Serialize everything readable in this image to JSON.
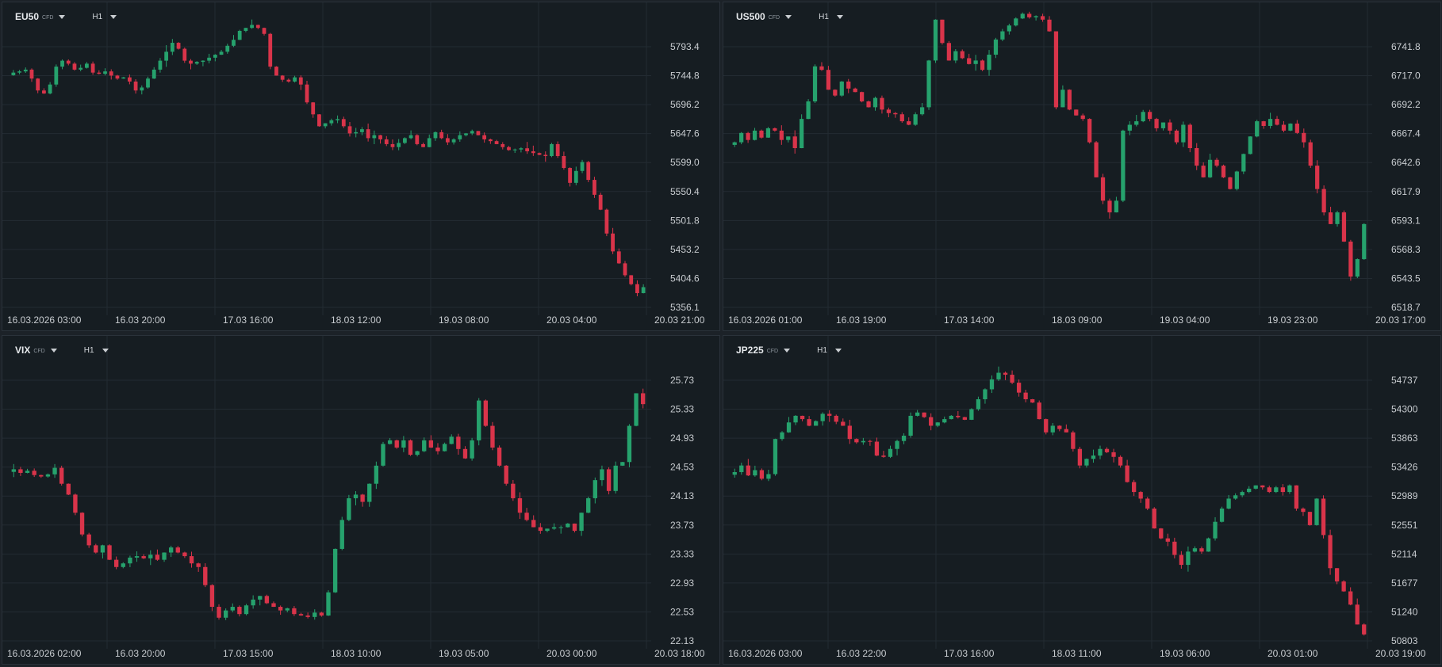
{
  "colors": {
    "up": "#26a26d",
    "down": "#d9344a",
    "grid": "#232b32",
    "background": "#161d22"
  },
  "panels": [
    {
      "symbol": "EU50",
      "type": "CFD",
      "timeframe": "H1",
      "price_ticks": [
        "5793.4",
        "5744.8",
        "5696.2",
        "5647.6",
        "5599.0",
        "5550.4",
        "5501.8",
        "5453.2",
        "5404.6",
        "5356.1"
      ],
      "time_labels": [
        "16.03.2026   03:00",
        "16.03  20:00",
        "17.03  16:00",
        "18.03  12:00",
        "19.03  08:00",
        "20.03  04:00",
        "20.03  21:00"
      ]
    },
    {
      "symbol": "US500",
      "type": "CFD",
      "timeframe": "H1",
      "price_ticks": [
        "6741.8",
        "6717.0",
        "6692.2",
        "6667.4",
        "6642.6",
        "6617.9",
        "6593.1",
        "6568.3",
        "6543.5",
        "6518.7"
      ],
      "time_labels": [
        "16.03.2026   01:00",
        "16.03  19:00",
        "17.03  14:00",
        "18.03  09:00",
        "19.03  04:00",
        "19.03  23:00",
        "20.03  17:00"
      ]
    },
    {
      "symbol": "VIX",
      "type": "CFD",
      "timeframe": "H1",
      "price_ticks": [
        "25.73",
        "25.33",
        "24.93",
        "24.53",
        "24.13",
        "23.73",
        "23.33",
        "22.93",
        "22.53",
        "22.13"
      ],
      "time_labels": [
        "16.03.2026   02:00",
        "16.03  20:00",
        "17.03  15:00",
        "18.03  10:00",
        "19.03  05:00",
        "20.03  00:00",
        "20.03  18:00"
      ]
    },
    {
      "symbol": "JP225",
      "type": "CFD",
      "timeframe": "H1",
      "price_ticks": [
        "54737",
        "54300",
        "53863",
        "53426",
        "52989",
        "52551",
        "52114",
        "51677",
        "51240",
        "50803"
      ],
      "time_labels": [
        "16.03.2026   03:00",
        "16.03  22:00",
        "17.03  16:00",
        "18.03  11:00",
        "19.03  06:00",
        "20.03  01:00",
        "20.03  19:00"
      ]
    }
  ],
  "chart_data": [
    {
      "type": "candlestick",
      "title": "EU50",
      "ylim": [
        5356.1,
        5793.4
      ],
      "path": [
        5750,
        5752,
        5755,
        5740,
        5720,
        5715,
        5730,
        5760,
        5770,
        5765,
        5755,
        5758,
        5765,
        5750,
        5748,
        5752,
        5745,
        5740,
        5742,
        5735,
        5720,
        5725,
        5740,
        5755,
        5770,
        5785,
        5800,
        5790,
        5770,
        5765,
        5768,
        5770,
        5775,
        5780,
        5785,
        5795,
        5805,
        5820,
        5825,
        5830,
        5825,
        5815,
        5760,
        5745,
        5738,
        5735,
        5742,
        5730,
        5700,
        5680,
        5660,
        5665,
        5670,
        5672,
        5660,
        5648,
        5650,
        5655,
        5640,
        5645,
        5638,
        5630,
        5625,
        5632,
        5640,
        5645,
        5630,
        5625,
        5640,
        5650,
        5640,
        5633,
        5638,
        5645,
        5648,
        5652,
        5645,
        5638,
        5635,
        5630,
        5625,
        5620,
        5621,
        5623,
        5618,
        5615,
        5612,
        5610,
        5630,
        5610,
        5590,
        5565,
        5585,
        5600,
        5570,
        5545,
        5520,
        5480,
        5450,
        5430,
        5410,
        5395,
        5380,
        5390
      ]
    },
    {
      "type": "candlestick",
      "title": "US500",
      "ylim": [
        6518.7,
        6741.8
      ],
      "path": [
        6660,
        6668,
        6662,
        6670,
        6664,
        6672,
        6670,
        6662,
        6665,
        6655,
        6680,
        6695,
        6725,
        6722,
        6705,
        6700,
        6712,
        6706,
        6703,
        6695,
        6690,
        6698,
        6688,
        6685,
        6684,
        6678,
        6675,
        6684,
        6690,
        6730,
        6765,
        6745,
        6730,
        6738,
        6732,
        6727,
        6730,
        6722,
        6735,
        6748,
        6755,
        6760,
        6766,
        6770,
        6767,
        6768,
        6765,
        6755,
        6690,
        6705,
        6688,
        6683,
        6680,
        6660,
        6630,
        6610,
        6600,
        6610,
        6670,
        6675,
        6678,
        6686,
        6680,
        6672,
        6677,
        6670,
        6660,
        6675,
        6655,
        6640,
        6630,
        6645,
        6640,
        6630,
        6620,
        6635,
        6650,
        6665,
        6678,
        6674,
        6680,
        6675,
        6670,
        6676,
        6668,
        6660,
        6640,
        6620,
        6600,
        6590,
        6600,
        6575,
        6545,
        6560,
        6590
      ]
    },
    {
      "type": "candlestick",
      "title": "VIX",
      "ylim": [
        22.13,
        25.73
      ],
      "path": [
        24.5,
        24.45,
        24.48,
        24.42,
        24.4,
        24.43,
        24.52,
        24.3,
        24.15,
        23.9,
        23.6,
        23.45,
        23.35,
        23.45,
        23.25,
        23.15,
        23.2,
        23.28,
        23.3,
        23.27,
        23.32,
        23.25,
        23.35,
        23.42,
        23.35,
        23.3,
        23.2,
        23.15,
        22.9,
        22.6,
        22.45,
        22.55,
        22.6,
        22.5,
        22.62,
        22.7,
        22.75,
        22.65,
        22.6,
        22.55,
        22.58,
        22.5,
        22.48,
        22.46,
        22.52,
        22.48,
        22.8,
        23.4,
        23.8,
        24.1,
        24.15,
        24.05,
        24.3,
        24.55,
        24.85,
        24.9,
        24.8,
        24.9,
        24.7,
        24.75,
        24.9,
        24.8,
        24.75,
        24.85,
        24.95,
        24.78,
        24.65,
        24.9,
        25.45,
        25.1,
        24.8,
        24.55,
        24.3,
        24.1,
        23.9,
        23.8,
        23.7,
        23.65,
        23.68,
        23.7,
        23.7,
        23.75,
        23.65,
        23.9,
        24.1,
        24.35,
        24.5,
        24.2,
        24.55,
        24.6,
        25.1,
        25.55,
        25.4
      ]
    },
    {
      "type": "candlestick",
      "title": "JP225",
      "ylim": [
        50803,
        54737
      ],
      "path": [
        53350,
        53450,
        53300,
        53380,
        53250,
        53320,
        53850,
        53950,
        54100,
        54200,
        54150,
        54050,
        54120,
        54230,
        54200,
        54110,
        54050,
        53850,
        53800,
        53820,
        53810,
        53600,
        53580,
        53700,
        53820,
        53900,
        54200,
        54250,
        54180,
        54050,
        54100,
        54150,
        54200,
        54180,
        54140,
        54300,
        54450,
        54600,
        54750,
        54850,
        54820,
        54700,
        54550,
        54450,
        54400,
        54150,
        53950,
        54050,
        54000,
        53950,
        53700,
        53450,
        53550,
        53600,
        53700,
        53650,
        53580,
        53450,
        53200,
        53050,
        52950,
        52800,
        52500,
        52350,
        52300,
        52100,
        51950,
        52150,
        52200,
        52150,
        52350,
        52600,
        52800,
        52950,
        53000,
        53050,
        53100,
        53150,
        53120,
        53050,
        53120,
        53050,
        53150,
        52800,
        52750,
        52550,
        52950,
        52400,
        51900,
        51700,
        51550,
        51350,
        51050,
        50900
      ]
    }
  ]
}
